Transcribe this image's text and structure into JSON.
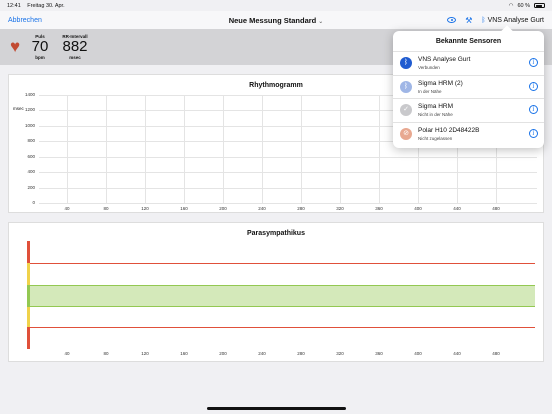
{
  "status": {
    "time": "12:41",
    "date": "Freitag 30. Apr.",
    "wifi_icon": "wifi-icon",
    "battery": "60 %"
  },
  "nav": {
    "back": "Abbrechen",
    "title": "Neue Messung Standard",
    "sensor_label": "VNS Analyse Gurt"
  },
  "metrics": {
    "pulse": {
      "label": "Puls",
      "value": "70",
      "unit": "bpm"
    },
    "rr": {
      "label": "RR-Intervall",
      "value": "882",
      "unit": "msec"
    }
  },
  "rhythm": {
    "title": "Rhythmogramm",
    "ylabel": "msec",
    "yticks": [
      "1400",
      "1200",
      "1000",
      "800",
      "600",
      "400",
      "200",
      "0"
    ],
    "xticks": [
      "40",
      "80",
      "120",
      "160",
      "200",
      "240",
      "280",
      "320",
      "360",
      "400",
      "440",
      "480"
    ]
  },
  "para": {
    "title": "Parasympathikus",
    "xticks": [
      "40",
      "80",
      "120",
      "160",
      "200",
      "240",
      "280",
      "320",
      "360",
      "400",
      "440",
      "480"
    ],
    "colors": {
      "red": "#e0503a",
      "yellow": "#f0d24a",
      "green": "#93c852"
    }
  },
  "popover": {
    "title": "Bekannte Sensoren",
    "sensors": [
      {
        "name": "VNS Analyse Gurt",
        "status": "Verbunden",
        "icon": "bluetooth-icon",
        "color": "#1f5bd0"
      },
      {
        "name": "Sigma HRM (2)",
        "status": "In der Nähe",
        "icon": "bluetooth-icon",
        "color": "#9fb6e6"
      },
      {
        "name": "Sigma HRM",
        "status": "Nicht in der Nähe",
        "icon": "checkmark-icon",
        "color": "#c9c9cc"
      },
      {
        "name": "Polar H10 2D48422B",
        "status": "Nicht zugelassen",
        "icon": "prohibited-icon",
        "color": "#e8a890"
      }
    ]
  }
}
